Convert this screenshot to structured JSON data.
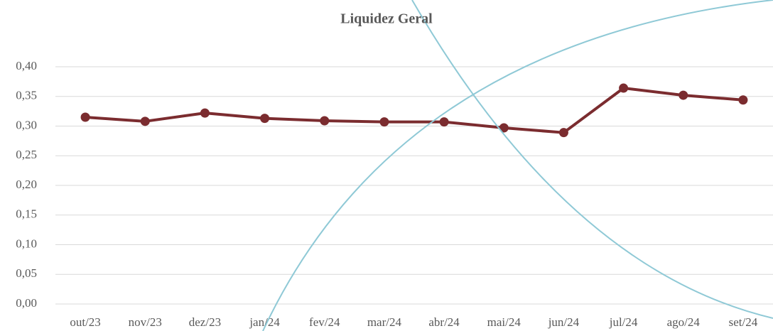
{
  "chart_data": {
    "type": "line",
    "title": "Liquidez Geral",
    "categories": [
      "out/23",
      "nov/23",
      "dez/23",
      "jan/24",
      "fev/24",
      "mar/24",
      "abr/24",
      "mai/24",
      "jun/24",
      "jul/24",
      "ago/24",
      "set/24"
    ],
    "series": [
      {
        "name": "Liquidez Geral",
        "color": "#7b2c2f",
        "values": [
          0.315,
          0.308,
          0.322,
          0.313,
          0.309,
          0.307,
          0.307,
          0.297,
          0.289,
          0.364,
          0.352,
          0.344
        ]
      }
    ],
    "ylim": [
      0,
      0.4
    ],
    "yticks": [
      {
        "value": 0,
        "label": "0,00"
      },
      {
        "value": 0.05,
        "label": "0,05"
      },
      {
        "value": 0.1,
        "label": "0,10"
      },
      {
        "value": 0.15,
        "label": "0,15"
      },
      {
        "value": 0.2,
        "label": "0,20"
      },
      {
        "value": 0.25,
        "label": "0,25"
      },
      {
        "value": 0.3,
        "label": "0,30"
      },
      {
        "value": 0.35,
        "label": "0,35"
      },
      {
        "value": 0.4,
        "label": "0,40"
      }
    ],
    "grid": true
  }
}
